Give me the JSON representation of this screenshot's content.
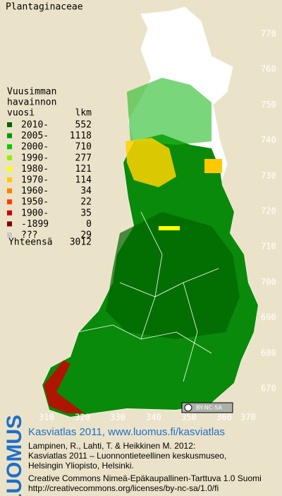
{
  "title": "Plantaginaceae",
  "legend": {
    "header": [
      "Vuusimman",
      "havainnon"
    ],
    "col_year": "vuosi",
    "col_count": "lkm",
    "rows": [
      {
        "label": "2010-",
        "count": 552,
        "color": "#006400"
      },
      {
        "label": "2005-",
        "count": 1118,
        "color": "#009a00"
      },
      {
        "label": "2000-",
        "count": 710,
        "color": "#00cc00"
      },
      {
        "label": "1990-",
        "count": 277,
        "color": "#99ee00"
      },
      {
        "label": "1980-",
        "count": 121,
        "color": "#ffff00"
      },
      {
        "label": "1970-",
        "count": 114,
        "color": "#ffc800"
      },
      {
        "label": "1960-",
        "count": 34,
        "color": "#ff8000"
      },
      {
        "label": "1950-",
        "count": 22,
        "color": "#ff3c00"
      },
      {
        "label": "1900-",
        "count": 35,
        "color": "#cc0000"
      },
      {
        "label": "-1899",
        "count": 0,
        "color": "#800000"
      },
      {
        "label": "???",
        "count": 29,
        "color": "#c8c8c8"
      }
    ],
    "total_label": "Yhteensä",
    "total": 3012
  },
  "y_labels": [
    "770",
    "760",
    "750",
    "740",
    "730",
    "720",
    "710",
    "700",
    "690",
    "680",
    "670"
  ],
  "x_labels": [
    "310",
    "320",
    "330",
    "340",
    "350",
    "360",
    "370"
  ],
  "badge": "BY-NC-SA",
  "footer": {
    "logo": "LUOMUS",
    "link": "Kasviatlas 2011, www.luomus.fi/kasviatlas",
    "lines": [
      "Lampinen, R., Lahti, T. & Heikkinen M. 2012:",
      "Kasviatlas 2011 – Luonnontieteellinen keskusmuseo,",
      "Helsingin Yliopisto, Helsinki."
    ],
    "license": [
      "Creative Commons Nimeä-Epäkaupallinen-Tarttuva 1.0 Suomi",
      "http://creativecommons.org/licenses/by-nc-sa/1.0/fi"
    ]
  }
}
